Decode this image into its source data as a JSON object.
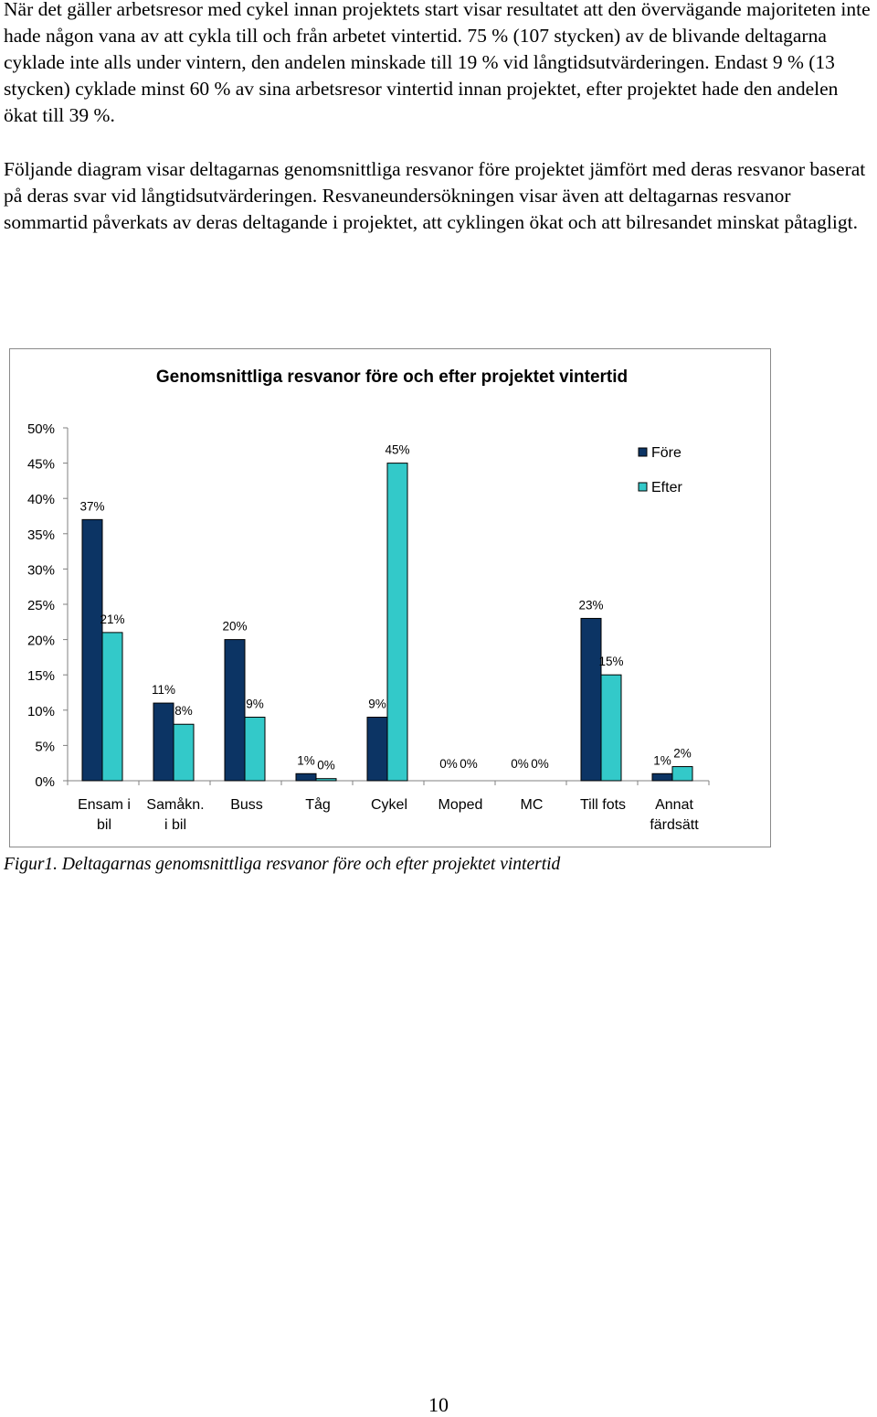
{
  "paragraphs": {
    "p1": "När det gäller arbetsresor med cykel innan projektets start visar resultatet att den övervägande majoriteten inte hade någon vana av att cykla till och från arbetet vintertid. 75 % (107 stycken) av de blivande deltagarna cyklade inte alls under vintern, den andelen minskade till 19 % vid långtidsutvärderingen. Endast 9 % (13 stycken) cyklade minst 60 % av sina arbetsresor vintertid innan projektet, efter projektet hade den andelen ökat till 39 %.",
    "p2": "Följande diagram visar deltagarnas genomsnittliga resvanor före projektet jämfört med deras resvanor baserat på deras svar vid långtidsutvärderingen. Resvaneundersökningen visar även att deltagarnas resvanor sommartid påverkats av deras deltagande i projektet, att cyklingen ökat och att bilresandet minskat påtagligt."
  },
  "chart_data": {
    "type": "bar",
    "title": "Genomsnittliga resvanor före och efter projektet vintertid",
    "xlabel": "",
    "ylabel": "",
    "ylim": [
      0,
      50
    ],
    "y_ticks": [
      "0%",
      "5%",
      "10%",
      "15%",
      "20%",
      "25%",
      "30%",
      "35%",
      "40%",
      "45%",
      "50%"
    ],
    "categories": [
      [
        "Ensam i",
        "bil"
      ],
      [
        "Samåkn.",
        "i bil"
      ],
      [
        "Buss"
      ],
      [
        "Tåg"
      ],
      [
        "Cykel"
      ],
      [
        "Moped"
      ],
      [
        "MC"
      ],
      [
        "Till fots"
      ],
      [
        "Annat",
        "färdsätt"
      ]
    ],
    "series": [
      {
        "name": "Före",
        "color": "#0c3464",
        "values": [
          37,
          11,
          20,
          1,
          9,
          0,
          0,
          23,
          1
        ],
        "labels": [
          "37%",
          "11%",
          "20%",
          "1%",
          "9%",
          "0%",
          "0%",
          "23%",
          "1%"
        ]
      },
      {
        "name": "Efter",
        "color": "#33c9c9",
        "values": [
          21,
          8,
          9,
          0.3,
          45,
          0,
          0,
          15,
          2
        ],
        "labels": [
          "21%",
          "8%",
          "9%",
          "0%",
          "45%",
          "0%",
          "0%",
          "15%",
          "2%"
        ]
      }
    ],
    "legend": "top-right",
    "grid": false
  },
  "caption": "Figur1. Deltagarnas genomsnittliga resvanor före och efter projektet vintertid",
  "page_number": "10"
}
